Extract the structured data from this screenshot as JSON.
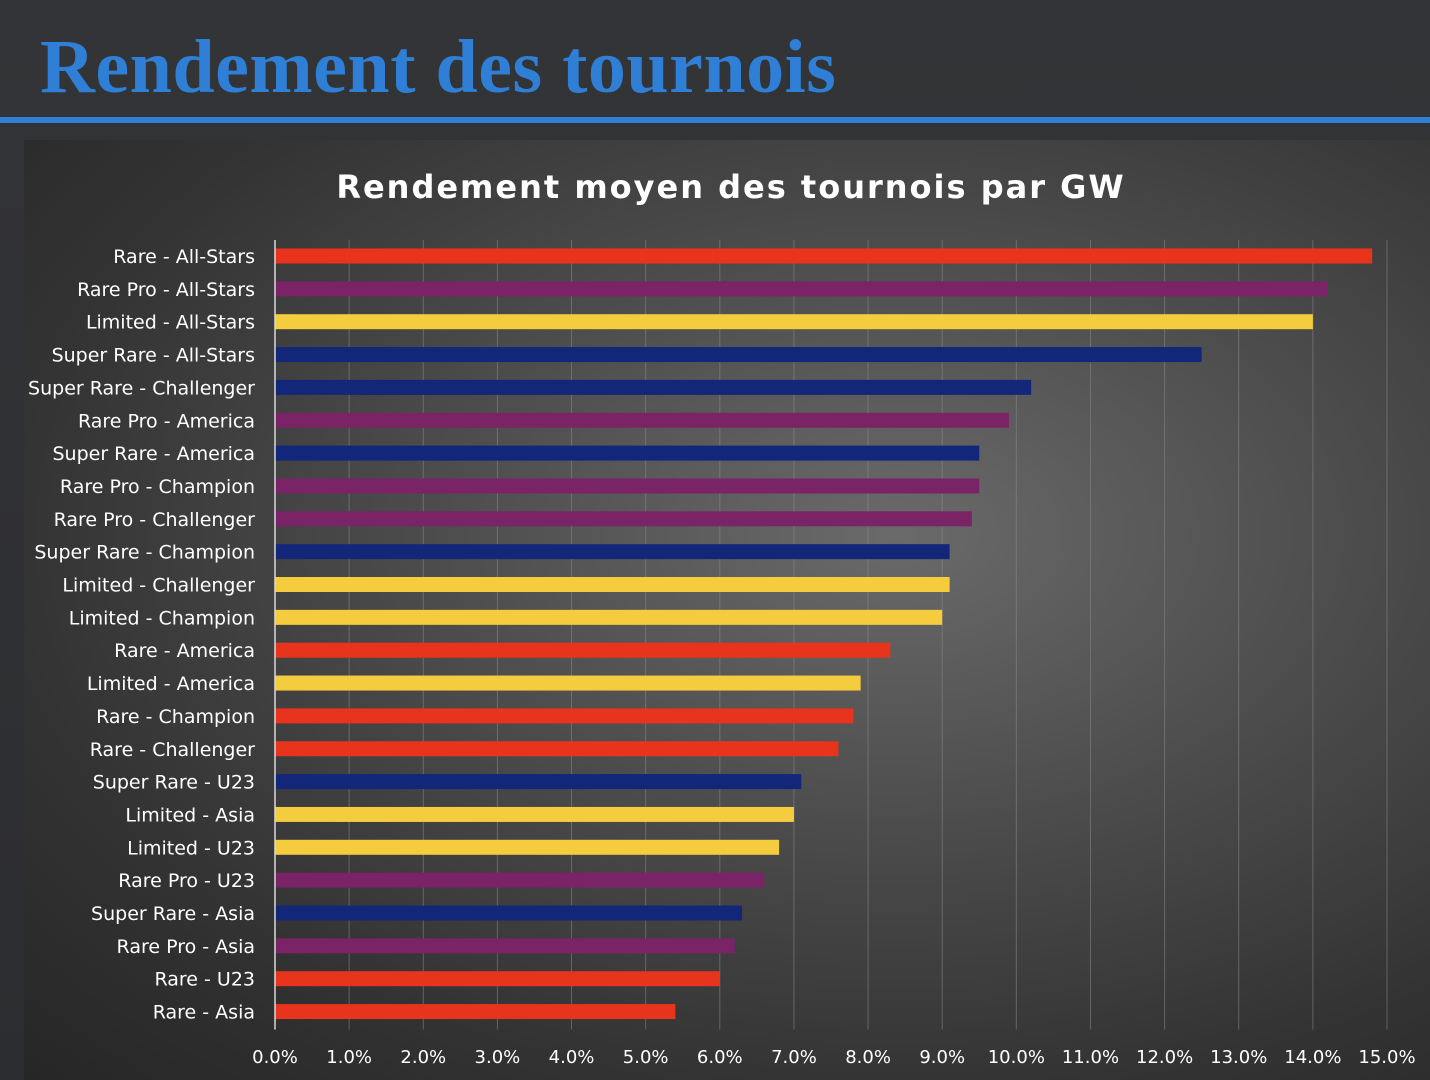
{
  "slide": {
    "title": "Rendement des tournois"
  },
  "colors": {
    "title_blue": "#2f7fd6",
    "Rare": "#e8341c",
    "Rare Pro": "#7a2367",
    "Limited": "#f4cc3d",
    "Super Rare": "#13277a",
    "gridline": "#8a8a8a"
  },
  "chart_data": {
    "type": "bar",
    "orientation": "horizontal",
    "title": "Rendement moyen des tournois par GW",
    "xlabel": "",
    "ylabel": "",
    "xlim": [
      0,
      15
    ],
    "x_ticks": [
      "0.0%",
      "1.0%",
      "2.0%",
      "3.0%",
      "4.0%",
      "5.0%",
      "6.0%",
      "7.0%",
      "8.0%",
      "9.0%",
      "10.0%",
      "11.0%",
      "12.0%",
      "13.0%",
      "14.0%",
      "15.0%"
    ],
    "grid": true,
    "legend": "none",
    "categories": [
      "Rare - All-Stars",
      "Rare Pro - All-Stars",
      "Limited - All-Stars",
      "Super Rare - All-Stars",
      "Super Rare - Challenger",
      "Rare Pro - America",
      "Super Rare - America",
      "Rare Pro - Champion",
      "Rare Pro - Challenger",
      "Super Rare - Champion",
      "Limited - Challenger",
      "Limited - Champion",
      "Rare - America",
      "Limited - America",
      "Rare - Champion",
      "Rare - Challenger",
      "Super Rare - U23",
      "Limited - Asia",
      "Limited - U23",
      "Rare Pro - U23",
      "Super Rare - Asia",
      "Rare Pro - Asia",
      "Rare - U23",
      "Rare - Asia"
    ],
    "values": [
      14.8,
      14.2,
      14.0,
      12.5,
      10.2,
      9.9,
      9.5,
      9.5,
      9.4,
      9.1,
      9.1,
      9.0,
      8.3,
      7.9,
      7.8,
      7.6,
      7.1,
      7.0,
      6.8,
      6.6,
      6.3,
      6.2,
      6.0,
      5.4
    ],
    "rarity": [
      "Rare",
      "Rare Pro",
      "Limited",
      "Super Rare",
      "Super Rare",
      "Rare Pro",
      "Super Rare",
      "Rare Pro",
      "Rare Pro",
      "Super Rare",
      "Limited",
      "Limited",
      "Rare",
      "Limited",
      "Rare",
      "Rare",
      "Super Rare",
      "Limited",
      "Limited",
      "Rare Pro",
      "Super Rare",
      "Rare Pro",
      "Rare",
      "Rare"
    ]
  }
}
